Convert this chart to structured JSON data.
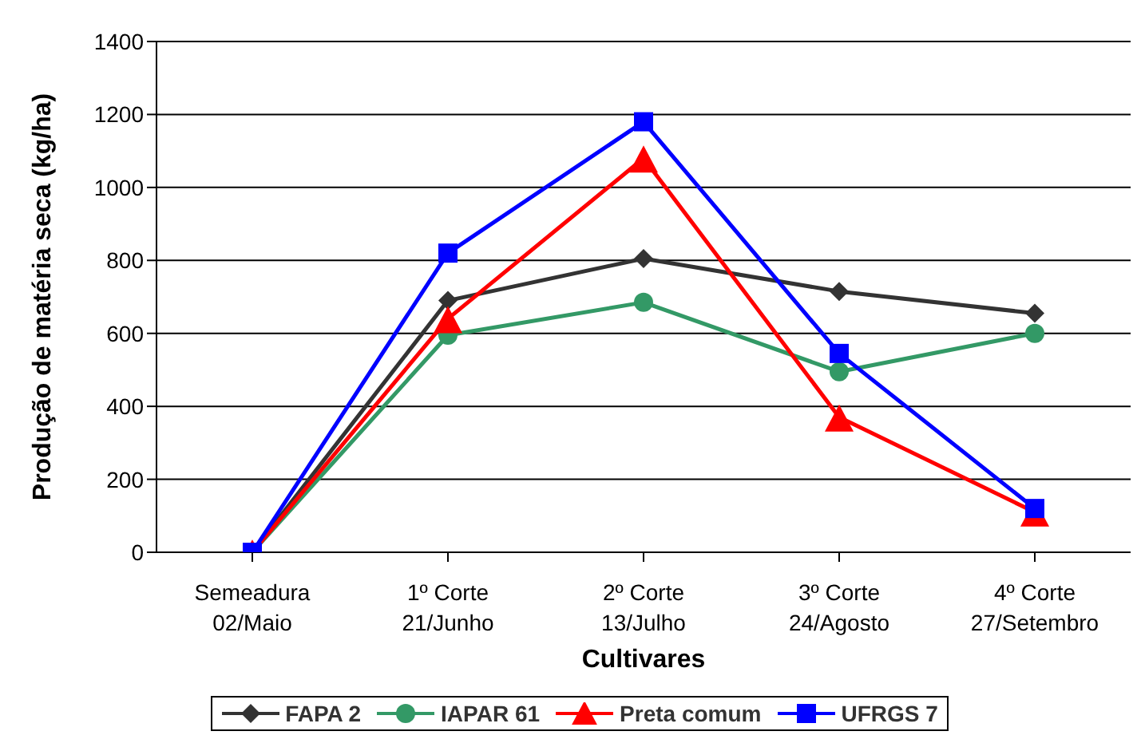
{
  "chart_data": {
    "type": "line",
    "xlabel": "Cultivares",
    "ylabel": "Produção de matéria seca (kg/ha)",
    "categories": [
      "Semeadura\n02/Maio",
      "1º Corte\n21/Junho",
      "2º Corte\n13/Julho",
      "3º Corte\n24/Agosto",
      "4º Corte\n27/Setembro"
    ],
    "series": [
      {
        "name": "FAPA 2",
        "color": "#333333",
        "marker": "diamond",
        "values": [
          0,
          690,
          805,
          715,
          655
        ]
      },
      {
        "name": "IAPAR 61",
        "color": "#339966",
        "marker": "circle",
        "values": [
          0,
          595,
          685,
          495,
          600
        ]
      },
      {
        "name": "Preta comum",
        "color": "#ff0000",
        "marker": "triangle",
        "values": [
          0,
          640,
          1080,
          370,
          110
        ]
      },
      {
        "name": "UFRGS 7",
        "color": "#0000ff",
        "marker": "square",
        "values": [
          0,
          820,
          1180,
          545,
          120
        ]
      }
    ],
    "ylim": [
      0,
      1400
    ],
    "yticks": [
      0,
      200,
      400,
      600,
      800,
      1000,
      1200,
      1400
    ],
    "grid": "y",
    "legend": "bottom"
  }
}
